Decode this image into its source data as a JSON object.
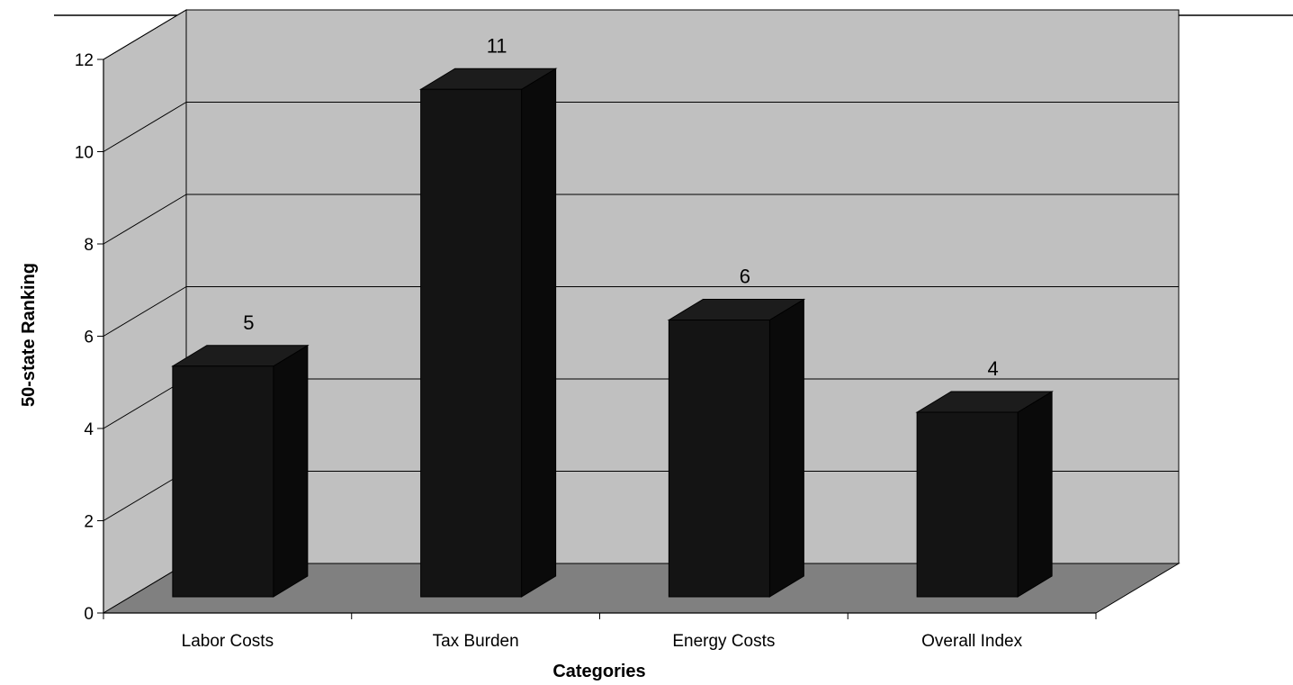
{
  "chart_data": {
    "type": "bar",
    "title": "",
    "xlabel": "Categories",
    "ylabel": "50-state Ranking",
    "categories": [
      "Labor Costs",
      "Tax Burden",
      "Energy Costs",
      "Overall Index"
    ],
    "values": [
      5,
      11,
      6,
      4
    ],
    "ylim": [
      0,
      12
    ],
    "yticks": [
      "0",
      "2",
      "4",
      "6",
      "8",
      "10",
      "12"
    ],
    "data_labels": [
      "5",
      "11",
      "6",
      "4"
    ],
    "grid": true,
    "style": "3d",
    "colors": {
      "bar_front": "#141414",
      "bar_top": "#1c1c1c",
      "bar_side": "#0a0a0a",
      "back_wall": "#c0c0c0",
      "side_wall": "#c0c0c0",
      "floor": "#808080"
    }
  }
}
